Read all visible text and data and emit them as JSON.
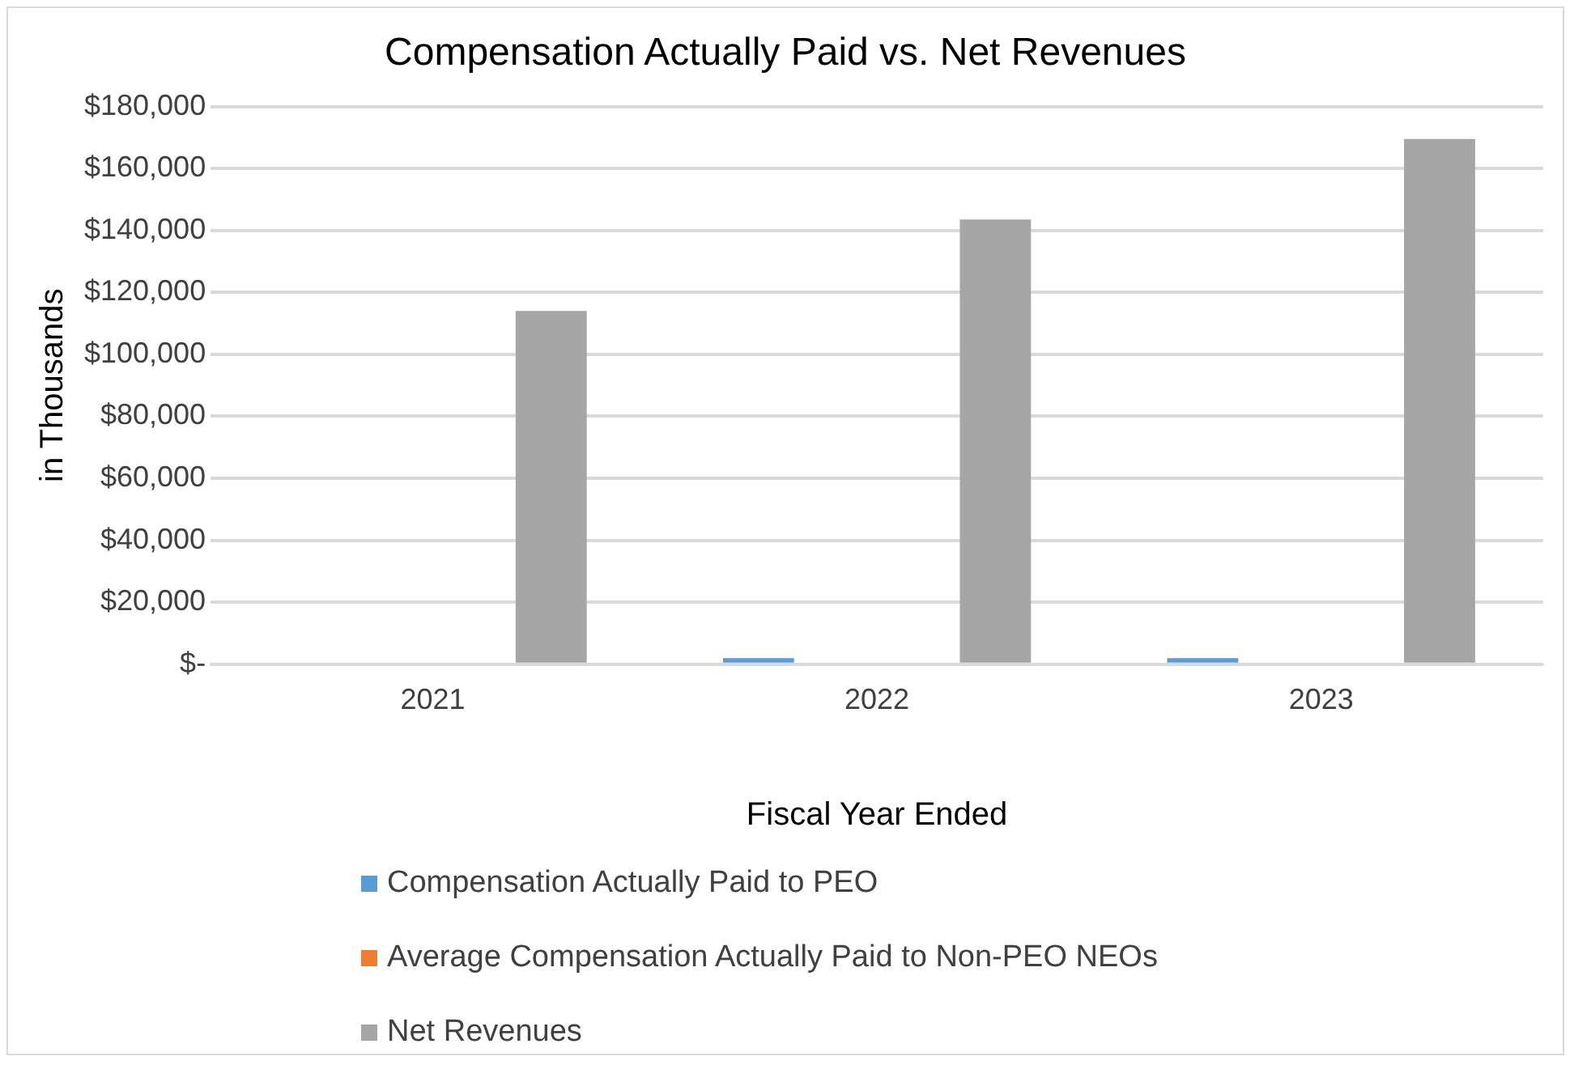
{
  "chart_data": {
    "type": "bar",
    "title": "Compensation Actually Paid vs. Net Revenues",
    "xlabel": "Fiscal Year Ended",
    "ylabel": "in Thousands",
    "categories": [
      "2021",
      "2022",
      "2023"
    ],
    "series": [
      {
        "name": "Compensation Actually Paid to PEO",
        "color": "#5b9bd5",
        "values": [
          0,
          2000,
          2000
        ]
      },
      {
        "name": "Average Compensation Actually Paid to Non-PEO NEOs",
        "color": "#ed7d31",
        "values": [
          0,
          0,
          0
        ]
      },
      {
        "name": "Net Revenues",
        "color": "#a5a5a5",
        "values": [
          114000,
          143500,
          169500
        ]
      }
    ],
    "ylim": [
      0,
      180000
    ],
    "yticks": [
      {
        "value": 0,
        "label": "$-"
      },
      {
        "value": 20000,
        "label": "$20,000"
      },
      {
        "value": 40000,
        "label": "$40,000"
      },
      {
        "value": 60000,
        "label": "$60,000"
      },
      {
        "value": 80000,
        "label": "$80,000"
      },
      {
        "value": 100000,
        "label": "$100,000"
      },
      {
        "value": 120000,
        "label": "$120,000"
      },
      {
        "value": 140000,
        "label": "$140,000"
      },
      {
        "value": 160000,
        "label": "$160,000"
      },
      {
        "value": 180000,
        "label": "$180,000"
      }
    ],
    "grid": "y",
    "legend": "bottom"
  }
}
